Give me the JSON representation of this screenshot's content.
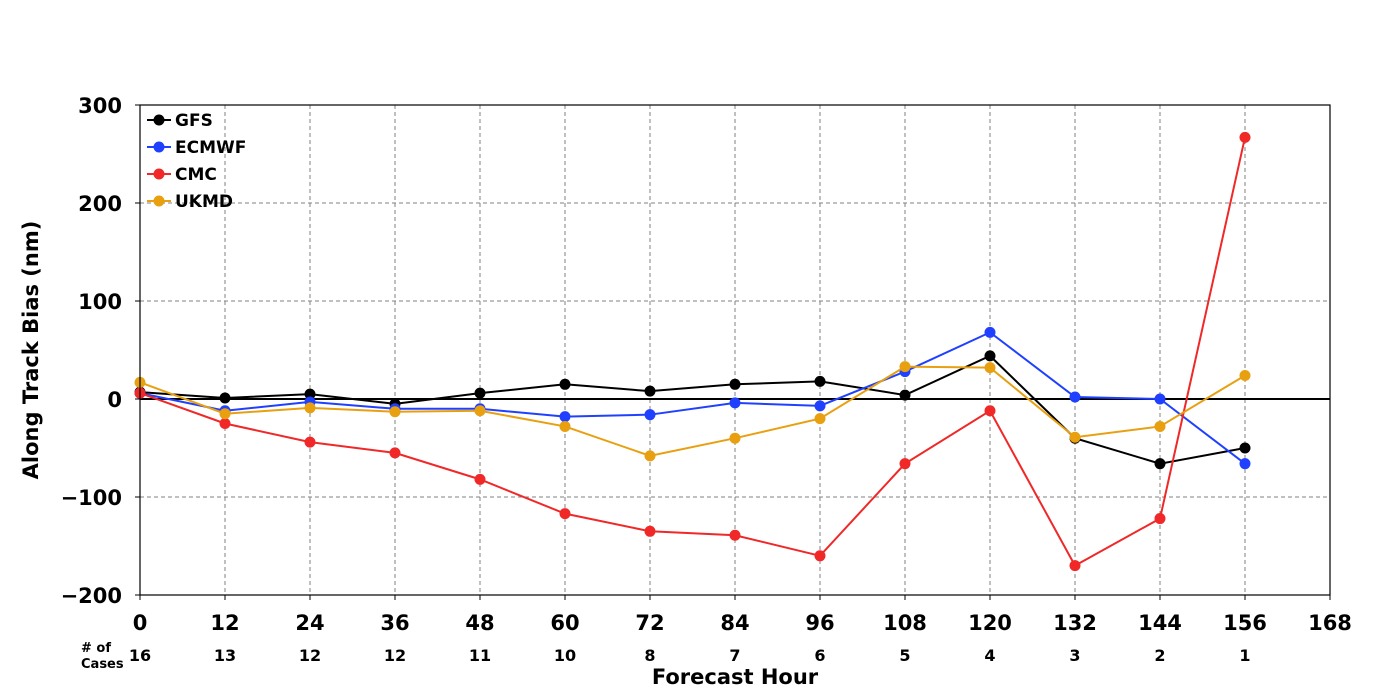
{
  "chart_data": {
    "type": "line",
    "title": "",
    "xlabel": "Forecast Hour",
    "ylabel": "Along Track Bias (nm)",
    "cases_label_line1": "# of",
    "cases_label_line2": "Cases",
    "xlim": [
      0,
      168
    ],
    "ylim": [
      -200,
      300
    ],
    "x_ticks": [
      0,
      12,
      24,
      36,
      48,
      60,
      72,
      84,
      96,
      108,
      120,
      132,
      144,
      156,
      168
    ],
    "y_ticks": [
      -200,
      -100,
      0,
      100,
      200,
      300
    ],
    "x_tick_labels": [
      "0",
      "12",
      "24",
      "36",
      "48",
      "60",
      "72",
      "84",
      "96",
      "108",
      "120",
      "132",
      "144",
      "156",
      "168"
    ],
    "y_tick_labels": [
      "−200",
      "−100",
      "0",
      "100",
      "200",
      "300"
    ],
    "x": [
      0,
      12,
      24,
      36,
      48,
      60,
      72,
      84,
      96,
      108,
      120,
      132,
      144,
      156
    ],
    "cases": [
      "16",
      "13",
      "12",
      "12",
      "11",
      "10",
      "8",
      "7",
      "6",
      "5",
      "4",
      "3",
      "2",
      "1"
    ],
    "grid": true,
    "zero_line": true,
    "legend_position": "top-left",
    "series": [
      {
        "name": "GFS",
        "color": "#000000",
        "values": [
          7,
          1,
          5,
          -5,
          6,
          15,
          8,
          15,
          18,
          4,
          44,
          -40,
          -66,
          -50
        ]
      },
      {
        "name": "ECMWF",
        "color": "#2040ff",
        "values": [
          6,
          -12,
          -3,
          -10,
          -10,
          -18,
          -16,
          -4,
          -7,
          28,
          68,
          2,
          0,
          -66
        ]
      },
      {
        "name": "CMC",
        "color": "#f02828",
        "values": [
          6,
          -25,
          -44,
          -55,
          -82,
          -117,
          -135,
          -139,
          -160,
          -66,
          -12,
          -170,
          -122,
          267
        ]
      },
      {
        "name": "UKMD",
        "color": "#e8a010",
        "values": [
          17,
          -15,
          -9,
          -13,
          -12,
          -28,
          -58,
          -40,
          -20,
          33,
          32,
          -39,
          -28,
          24
        ]
      }
    ]
  }
}
